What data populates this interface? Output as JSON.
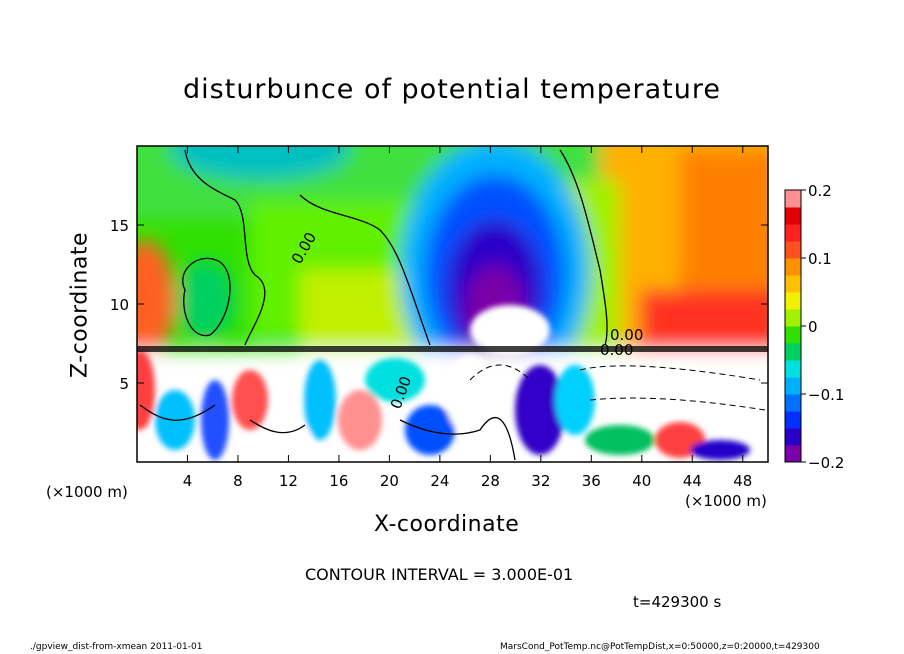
{
  "chart_data": {
    "type": "heatmap",
    "title": "disturbunce of potential temperature",
    "xlabel": "X-coordinate",
    "ylabel": "Z-coordinate",
    "x_unit_left": "(×1000 m)",
    "x_unit_right": "(×1000 m)",
    "xlim": [
      0,
      50
    ],
    "ylim": [
      0,
      20
    ],
    "xticks": [
      4,
      8,
      12,
      16,
      20,
      24,
      28,
      32,
      36,
      40,
      44,
      48
    ],
    "yticks": [
      5,
      10,
      15
    ],
    "colorbar": {
      "range": [
        -0.2,
        0.2
      ],
      "tick_labels": [
        "0.2",
        "0.1",
        "0",
        "−0.1",
        "−0.2"
      ],
      "tick_values": [
        0.2,
        0.1,
        0,
        -0.1,
        -0.2
      ],
      "colors": [
        "#7a00a8",
        "#2a00c8",
        "#0030ff",
        "#0070ff",
        "#00b0ff",
        "#00e0e0",
        "#00d060",
        "#30e000",
        "#a0f000",
        "#f0f000",
        "#ffc000",
        "#ff9000",
        "#ff5020",
        "#ff2020",
        "#e00000",
        "#ff9090"
      ]
    },
    "contour_labels": [
      "0.00",
      "0.00",
      "0.00",
      "0.00"
    ],
    "grid": false
  },
  "annotations": {
    "contour_interval": "CONTOUR INTERVAL = 3.000E-01",
    "time": "t=429300 s",
    "footer_left": "./gpview_dist-from-xmean  2011-01-01",
    "footer_right": "MarsCond_PotTemp.nc@PotTempDist,x=0:50000,z=0:20000,t=429300"
  }
}
